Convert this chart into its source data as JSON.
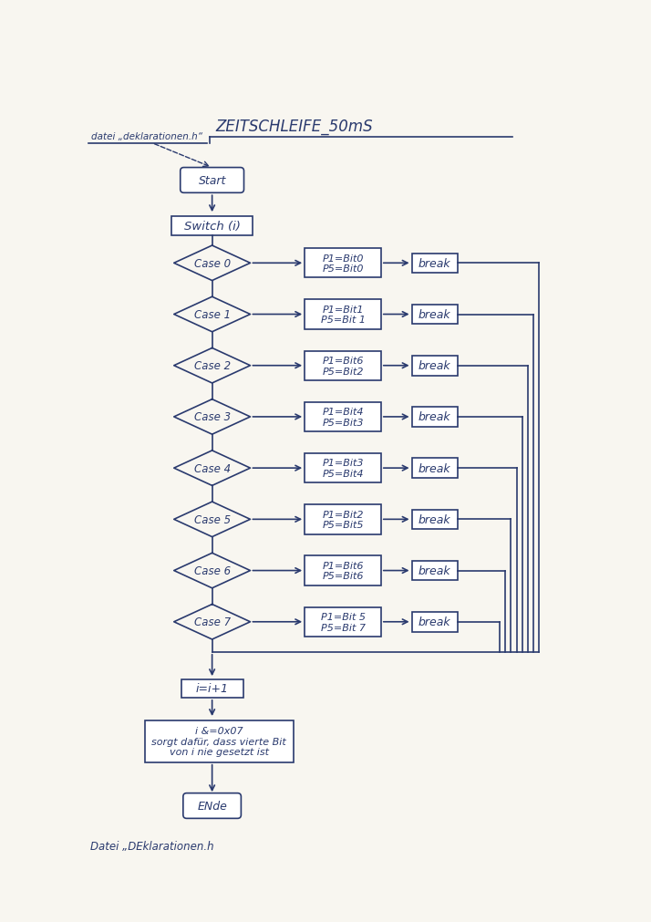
{
  "title": "ZEITSCHLEIFE_50mS",
  "subtitle": "datei „deklarationen.h“",
  "bottom_label": "Datei „DEklarationen.h",
  "bg_color": "#f8f6f0",
  "ink_color": "#2a3a6e",
  "start_label": "Start",
  "switch_label": "Switch (i)",
  "cases": [
    {
      "diamond": "Case 0",
      "box": "P1=Bit0\nP5=Bit0",
      "brk": "break"
    },
    {
      "diamond": "Case 1",
      "box": "P1=Bit1\nP5=Bit 1",
      "brk": "break"
    },
    {
      "diamond": "Case 2",
      "box": "P1=Bit6\nP5=Bit2",
      "brk": "break"
    },
    {
      "diamond": "Case 3",
      "box": "P1=Bit4\nP5=Bit3",
      "brk": "break"
    },
    {
      "diamond": "Case 4",
      "box": "P1=Bit3\nP5=Bit4",
      "brk": "break"
    },
    {
      "diamond": "Case 5",
      "box": "P1=Bit2\nP5=Bit5",
      "brk": "break"
    },
    {
      "diamond": "Case 6",
      "box": "P1=Bit6\nP5=Bit6",
      "brk": "break"
    },
    {
      "diamond": "Case 7",
      "box": "P1=Bit 5\nP5=Bit 7",
      "brk": "break"
    }
  ],
  "increment_label": "i=i+1",
  "mask_label": "i &=0x07\nsorgt dafür, dass vierte Bit\nvon i nie gesetzt ist",
  "end_label": "ENde"
}
